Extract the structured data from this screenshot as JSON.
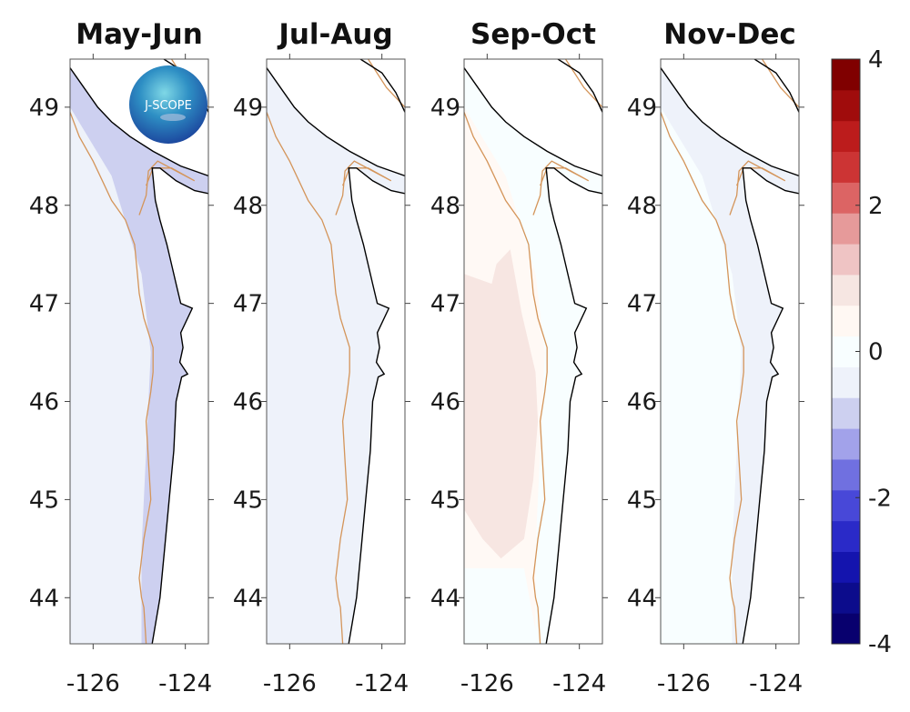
{
  "chart_data": {
    "type": "heatmap",
    "title": "",
    "xlabel": "",
    "ylabel": "",
    "xlim": [
      -126.5,
      -123.5
    ],
    "ylim": [
      43.53,
      49.49
    ],
    "x_ticks": [
      "-126",
      "-124"
    ],
    "x_tick_values": [
      -126,
      -124
    ],
    "y_ticks": [
      "49",
      "48",
      "47",
      "46",
      "45",
      "44"
    ],
    "y_tick_values": [
      49,
      48,
      47,
      46,
      45,
      44
    ],
    "panels": [
      {
        "title": "May-Jun",
        "offshore_anomaly": 0.1,
        "nearshore_anomaly": -0.4,
        "description": "near-zero, slightly negative along coast; strongest negative (~-0.75) near 43.8N"
      },
      {
        "title": "Jul-Aug",
        "offshore_anomaly": 0.2,
        "nearshore_anomaly": -0.2,
        "description": "near-zero, slight positive offshore south, slight negative near Juan de Fuca"
      },
      {
        "title": "Sep-Oct",
        "offshore_anomaly": 1.2,
        "nearshore_anomaly": 0.7,
        "description": "positive anomaly 1.0-1.5 over large offshore region 44.5-47.5N"
      },
      {
        "title": "Nov-Dec",
        "offshore_anomaly": 0.3,
        "nearshore_anomaly": -0.1,
        "description": "slightly positive offshore, near-zero nearshore"
      }
    ],
    "colorbar": {
      "min": -4,
      "max": 4,
      "step": 0.5,
      "ticks": [
        "4",
        "2",
        "0",
        "-2",
        "-4"
      ],
      "tick_values": [
        4,
        2,
        0,
        -2,
        -4
      ],
      "colors": [
        "#08006e",
        "#0c0c9a",
        "#1616b4",
        "#2a2ac8",
        "#4848d8",
        "#7070e0",
        "#a2a2ea",
        "#cdd0f0",
        "#eef2fa",
        "#f8feff",
        "#fff9f5",
        "#f7e6e2",
        "#efc4c4",
        "#e69a9a",
        "#dc6464",
        "#cc3434",
        "#b81c1c",
        "#a00c0c",
        "#800000"
      ]
    },
    "contour_color": "#d4955a",
    "coast_color": "#000000"
  },
  "logo": {
    "text": "J-SCOPE"
  }
}
